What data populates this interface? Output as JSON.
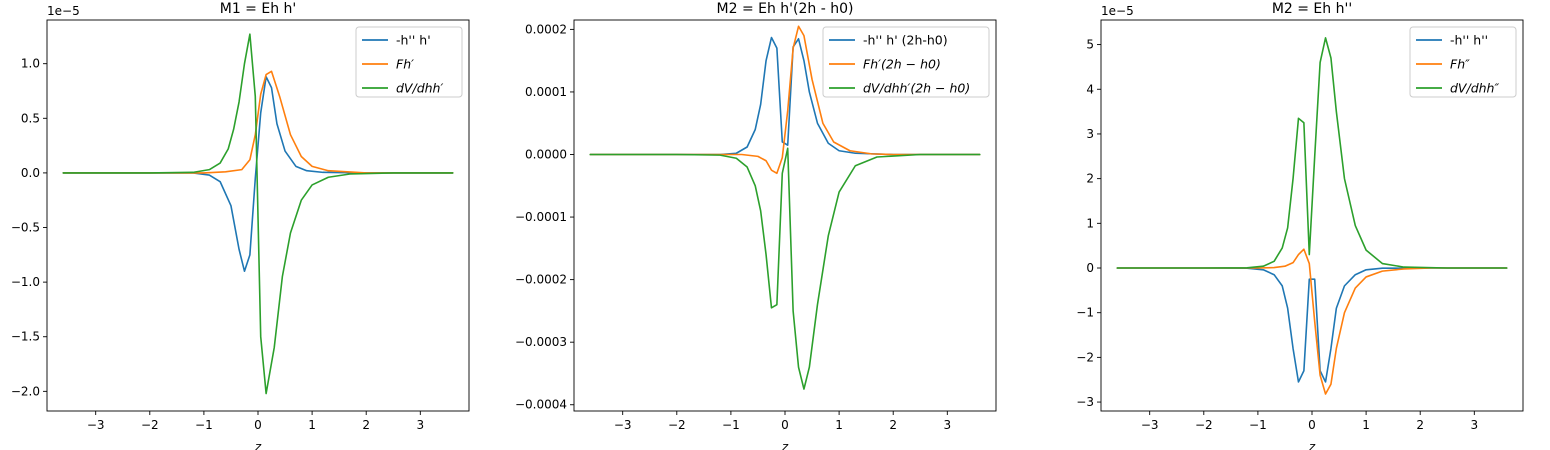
{
  "chart_data": [
    {
      "type": "line",
      "title": "M1 = Eh h'",
      "xlabel": "z",
      "ylabel": "",
      "y_offset_label": "1e−5",
      "xlim": [
        -3.9,
        3.9
      ],
      "ylim": [
        -2.18,
        1.4
      ],
      "xticks": [
        -3,
        -2,
        -1,
        0,
        1,
        2,
        3
      ],
      "xtick_labels": [
        "−3",
        "−2",
        "−1",
        "0",
        "1",
        "2",
        "3"
      ],
      "yticks": [
        -2.0,
        -1.5,
        -1.0,
        -0.5,
        0.0,
        0.5,
        1.0
      ],
      "ytick_labels": [
        "−2.0",
        "−1.5",
        "−1.0",
        "−0.5",
        "0.0",
        "0.5",
        "1.0"
      ],
      "legend": {
        "placement": "top-right"
      },
      "series": [
        {
          "name": "-h'' h'",
          "color": "#1f77b4",
          "x": [
            -3.6,
            -2.0,
            -1.2,
            -0.9,
            -0.7,
            -0.5,
            -0.35,
            -0.25,
            -0.15,
            -0.05,
            0.05,
            0.15,
            0.25,
            0.35,
            0.5,
            0.7,
            0.9,
            1.2,
            2.0,
            3.6
          ],
          "y": [
            0,
            0,
            0,
            -0.02,
            -0.08,
            -0.3,
            -0.7,
            -0.9,
            -0.75,
            -0.05,
            0.55,
            0.88,
            0.78,
            0.45,
            0.2,
            0.06,
            0.02,
            0.005,
            0,
            0
          ]
        },
        {
          "name": "Fh′",
          "color": "#ff7f0e",
          "x": [
            -3.6,
            -2.0,
            -1.0,
            -0.6,
            -0.3,
            -0.15,
            -0.05,
            0.05,
            0.15,
            0.25,
            0.4,
            0.6,
            0.8,
            1.0,
            1.3,
            2.0,
            3.6
          ],
          "y": [
            0,
            0,
            0,
            0.01,
            0.03,
            0.12,
            0.35,
            0.72,
            0.9,
            0.93,
            0.7,
            0.35,
            0.15,
            0.06,
            0.02,
            0,
            0
          ]
        },
        {
          "name": "dV/dhh′",
          "color": "#2ca02c",
          "x": [
            -3.6,
            -2.0,
            -1.2,
            -0.9,
            -0.7,
            -0.55,
            -0.45,
            -0.35,
            -0.25,
            -0.15,
            -0.05,
            0.05,
            0.15,
            0.3,
            0.45,
            0.6,
            0.8,
            1.0,
            1.3,
            1.7,
            2.5,
            3.6
          ],
          "y": [
            0,
            0,
            0.005,
            0.03,
            0.09,
            0.22,
            0.4,
            0.65,
            1.0,
            1.27,
            0.7,
            -1.5,
            -2.02,
            -1.6,
            -0.95,
            -0.55,
            -0.25,
            -0.11,
            -0.04,
            -0.01,
            0,
            0
          ]
        }
      ]
    },
    {
      "type": "line",
      "title": "M2 = Eh h'(2h - h0)",
      "xlabel": "z",
      "ylabel": "",
      "xlim": [
        -3.9,
        3.9
      ],
      "ylim": [
        -0.00041,
        0.000215
      ],
      "xticks": [
        -3,
        -2,
        -1,
        0,
        1,
        2,
        3
      ],
      "xtick_labels": [
        "−3",
        "−2",
        "−1",
        "0",
        "1",
        "2",
        "3"
      ],
      "yticks": [
        -0.0004,
        -0.0003,
        -0.0002,
        -0.0001,
        0.0,
        0.0001,
        0.0002
      ],
      "ytick_labels": [
        "−0.0004",
        "−0.0003",
        "−0.0002",
        "−0.0001",
        "0.0000",
        "0.0001",
        "0.0002"
      ],
      "legend": {
        "placement": "top-right"
      },
      "series": [
        {
          "name": "-h'' h' (2h-h0)",
          "color": "#1f77b4",
          "x": [
            -3.6,
            -2.0,
            -1.2,
            -0.9,
            -0.7,
            -0.55,
            -0.45,
            -0.35,
            -0.25,
            -0.15,
            -0.05,
            0.05,
            0.15,
            0.25,
            0.35,
            0.45,
            0.6,
            0.8,
            1.0,
            1.3,
            2.0,
            3.6
          ],
          "y": [
            0,
            0,
            0,
            2e-06,
            1.2e-05,
            4e-05,
            8e-05,
            0.00015,
            0.000187,
            0.00017,
            2e-05,
            1.5e-05,
            0.000172,
            0.000185,
            0.00015,
            0.0001,
            5e-05,
            1.8e-05,
            6e-06,
            2e-06,
            0,
            0
          ]
        },
        {
          "name": "Fh′(2h − h0)",
          "color": "#ff7f0e",
          "x": [
            -3.6,
            -2.0,
            -0.8,
            -0.5,
            -0.35,
            -0.25,
            -0.15,
            -0.05,
            0.05,
            0.15,
            0.25,
            0.35,
            0.5,
            0.7,
            0.9,
            1.2,
            1.6,
            2.0,
            3.6
          ],
          "y": [
            0,
            0,
            0,
            -3e-06,
            -1e-05,
            -2.5e-05,
            -3e-05,
            -5e-06,
            7e-05,
            0.00017,
            0.000205,
            0.00019,
            0.00012,
            5e-05,
            2e-05,
            6e-06,
            1e-06,
            0,
            0
          ]
        },
        {
          "name": "dV/dhh′(2h − h0)",
          "color": "#2ca02c",
          "x": [
            -3.6,
            -2.0,
            -1.2,
            -0.9,
            -0.7,
            -0.55,
            -0.45,
            -0.35,
            -0.25,
            -0.15,
            -0.05,
            0.05,
            0.15,
            0.25,
            0.35,
            0.45,
            0.6,
            0.8,
            1.0,
            1.3,
            1.7,
            2.5,
            3.6
          ],
          "y": [
            0,
            0,
            -1e-06,
            -6e-06,
            -2e-05,
            -5e-05,
            -9e-05,
            -0.00016,
            -0.000245,
            -0.00024,
            -3e-05,
            1e-05,
            -0.00025,
            -0.00034,
            -0.000375,
            -0.00034,
            -0.00024,
            -0.00013,
            -6e-05,
            -1.8e-05,
            -4e-06,
            0,
            0
          ]
        }
      ]
    },
    {
      "type": "line",
      "title": "M2 = Eh h''",
      "xlabel": "z",
      "ylabel": "",
      "y_offset_label": "1e−5",
      "xlim": [
        -3.9,
        3.9
      ],
      "ylim": [
        -3.2,
        5.55
      ],
      "xticks": [
        -3,
        -2,
        -1,
        0,
        1,
        2,
        3
      ],
      "xtick_labels": [
        "−3",
        "−2",
        "−1",
        "0",
        "1",
        "2",
        "3"
      ],
      "yticks": [
        -3,
        -2,
        -1,
        0,
        1,
        2,
        3,
        4,
        5
      ],
      "ytick_labels": [
        "−3",
        "−2",
        "−1",
        "0",
        "1",
        "2",
        "3",
        "4",
        "5"
      ],
      "legend": {
        "placement": "top-right"
      },
      "series": [
        {
          "name": "-h'' h''",
          "color": "#1f77b4",
          "x": [
            -3.6,
            -2.0,
            -1.2,
            -0.9,
            -0.7,
            -0.55,
            -0.45,
            -0.35,
            -0.25,
            -0.15,
            -0.05,
            0.05,
            0.15,
            0.25,
            0.35,
            0.45,
            0.6,
            0.8,
            1.0,
            1.3,
            2.0,
            3.6
          ],
          "y": [
            0,
            0,
            -0.005,
            -0.04,
            -0.15,
            -0.4,
            -0.9,
            -1.8,
            -2.55,
            -2.3,
            -0.25,
            -0.25,
            -2.3,
            -2.55,
            -1.8,
            -0.9,
            -0.4,
            -0.15,
            -0.04,
            -0.005,
            0,
            0
          ]
        },
        {
          "name": "Fh″",
          "color": "#ff7f0e",
          "x": [
            -3.6,
            -2.0,
            -1.0,
            -0.7,
            -0.5,
            -0.35,
            -0.25,
            -0.15,
            -0.05,
            0.05,
            0.15,
            0.25,
            0.35,
            0.45,
            0.6,
            0.8,
            1.0,
            1.3,
            1.7,
            2.2,
            3.6
          ],
          "y": [
            0,
            0,
            0,
            0.01,
            0.04,
            0.12,
            0.3,
            0.42,
            0.1,
            -1.2,
            -2.4,
            -2.82,
            -2.6,
            -1.8,
            -1.0,
            -0.45,
            -0.2,
            -0.07,
            -0.02,
            0,
            0
          ]
        },
        {
          "name": "dV/dhh″",
          "color": "#2ca02c",
          "x": [
            -3.6,
            -2.0,
            -1.2,
            -0.9,
            -0.7,
            -0.55,
            -0.45,
            -0.35,
            -0.25,
            -0.15,
            -0.05,
            0.05,
            0.15,
            0.25,
            0.35,
            0.45,
            0.6,
            0.8,
            1.0,
            1.3,
            1.7,
            2.5,
            3.6
          ],
          "y": [
            0,
            0,
            0.005,
            0.04,
            0.15,
            0.45,
            0.9,
            2.0,
            3.35,
            3.25,
            0.3,
            2.5,
            4.6,
            5.15,
            4.7,
            3.5,
            2.0,
            0.95,
            0.4,
            0.1,
            0.02,
            0,
            0
          ]
        }
      ]
    }
  ]
}
